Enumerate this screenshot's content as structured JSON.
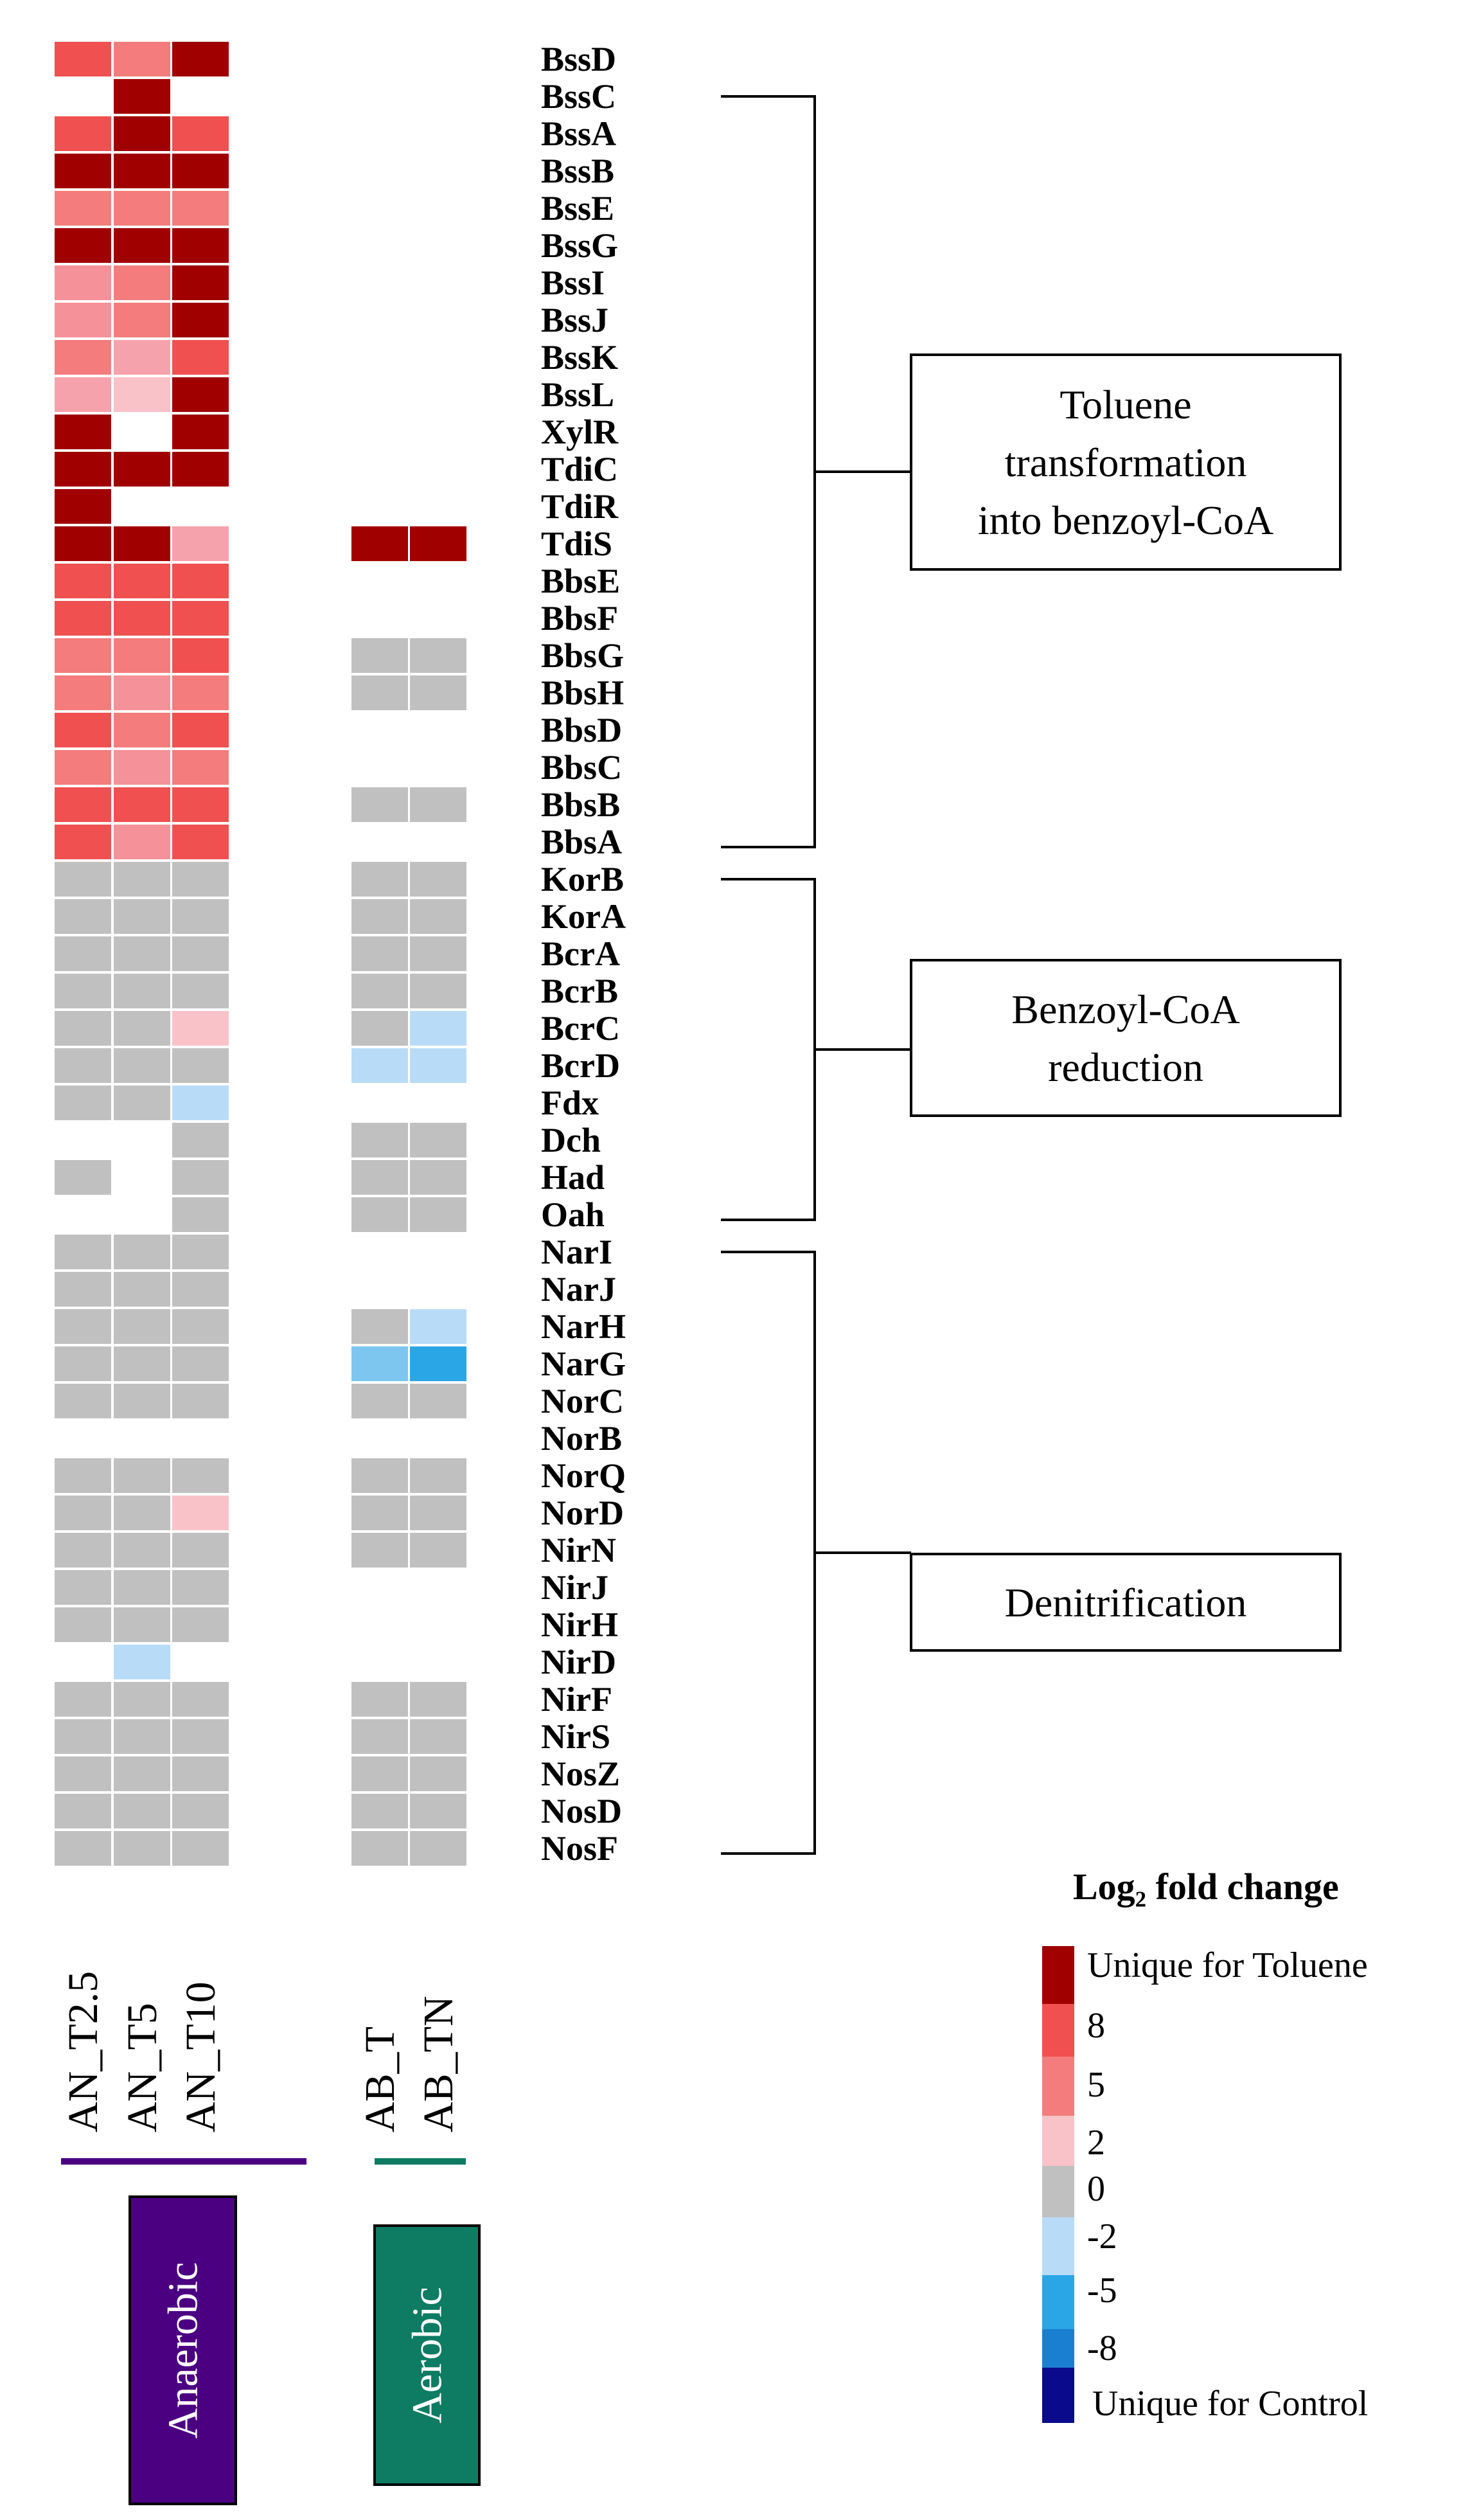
{
  "chart_data": {
    "type": "heatmap",
    "samples": [
      "AN_T2.5",
      "AN_T5",
      "AN_T10",
      "AB_T",
      "AB_TN"
    ],
    "groups": [
      {
        "label": "Anaerobic",
        "samples": [
          "AN_T2.5",
          "AN_T5",
          "AN_T10"
        ],
        "color": "#4B0082"
      },
      {
        "label": "Aerobic",
        "samples": [
          "AB_T",
          "AB_TN"
        ],
        "color": "#0E7B63"
      }
    ],
    "rows": [
      {
        "gene": "BssD",
        "values": [
          6,
          5,
          "T",
          null,
          null
        ]
      },
      {
        "gene": "BssC",
        "values": [
          null,
          "T",
          null,
          null,
          null
        ]
      },
      {
        "gene": "BssA",
        "values": [
          6,
          "T",
          6,
          null,
          null
        ]
      },
      {
        "gene": "BssB",
        "values": [
          "T",
          "T",
          "T",
          null,
          null
        ]
      },
      {
        "gene": "BssE",
        "values": [
          5,
          5,
          5,
          null,
          null
        ]
      },
      {
        "gene": "BssG",
        "values": [
          "T",
          "T",
          "T",
          null,
          null
        ]
      },
      {
        "gene": "BssI",
        "values": [
          4,
          5,
          "T",
          null,
          null
        ]
      },
      {
        "gene": "BssJ",
        "values": [
          4,
          5,
          "T",
          null,
          null
        ]
      },
      {
        "gene": "BssK",
        "values": [
          5,
          3,
          6,
          null,
          null
        ]
      },
      {
        "gene": "BssL",
        "values": [
          3,
          2,
          "T",
          null,
          null
        ]
      },
      {
        "gene": "XylR",
        "values": [
          "T",
          null,
          "T",
          null,
          null
        ]
      },
      {
        "gene": "TdiC",
        "values": [
          "T",
          "T",
          "T",
          null,
          null
        ]
      },
      {
        "gene": "TdiR",
        "values": [
          "T",
          null,
          null,
          null,
          null
        ]
      },
      {
        "gene": "TdiS",
        "values": [
          "T",
          "T",
          3,
          "T",
          "T"
        ]
      },
      {
        "gene": "BbsE",
        "values": [
          6,
          6,
          6,
          null,
          null
        ]
      },
      {
        "gene": "BbsF",
        "values": [
          6,
          6,
          6,
          null,
          null
        ]
      },
      {
        "gene": "BbsG",
        "values": [
          5,
          5,
          6,
          0,
          0
        ]
      },
      {
        "gene": "BbsH",
        "values": [
          5,
          4,
          5,
          0,
          0
        ]
      },
      {
        "gene": "BbsD",
        "values": [
          6,
          5,
          6,
          null,
          null
        ]
      },
      {
        "gene": "BbsC",
        "values": [
          5,
          4,
          5,
          null,
          null
        ]
      },
      {
        "gene": "BbsB",
        "values": [
          6,
          6,
          6,
          0,
          0
        ]
      },
      {
        "gene": "BbsA",
        "values": [
          6,
          4,
          6,
          null,
          null
        ]
      },
      {
        "gene": "KorB",
        "values": [
          0,
          0,
          0,
          0,
          0
        ]
      },
      {
        "gene": "KorA",
        "values": [
          0,
          0,
          0,
          0,
          0
        ]
      },
      {
        "gene": "BcrA",
        "values": [
          0,
          0,
          0,
          0,
          0
        ]
      },
      {
        "gene": "BcrB",
        "values": [
          0,
          0,
          0,
          0,
          0
        ]
      },
      {
        "gene": "BcrC",
        "values": [
          0,
          0,
          2,
          0,
          -2
        ]
      },
      {
        "gene": "BcrD",
        "values": [
          0,
          0,
          0,
          -2,
          -2
        ]
      },
      {
        "gene": "Fdx",
        "values": [
          0,
          0,
          -2,
          null,
          null
        ]
      },
      {
        "gene": "Dch",
        "values": [
          null,
          null,
          0,
          0,
          0
        ]
      },
      {
        "gene": "Had",
        "values": [
          0,
          null,
          0,
          0,
          0
        ]
      },
      {
        "gene": "Oah",
        "values": [
          null,
          null,
          0,
          0,
          0
        ]
      },
      {
        "gene": "NarI",
        "values": [
          0,
          0,
          0,
          null,
          null
        ]
      },
      {
        "gene": "NarJ",
        "values": [
          0,
          0,
          0,
          null,
          null
        ]
      },
      {
        "gene": "NarH",
        "values": [
          0,
          0,
          0,
          0,
          -2
        ]
      },
      {
        "gene": "NarG",
        "values": [
          0,
          0,
          0,
          -3,
          -4
        ]
      },
      {
        "gene": "NorC",
        "values": [
          0,
          0,
          0,
          0,
          0
        ]
      },
      {
        "gene": "NorB",
        "values": [
          null,
          null,
          null,
          null,
          null
        ]
      },
      {
        "gene": "NorQ",
        "values": [
          0,
          0,
          0,
          0,
          0
        ]
      },
      {
        "gene": "NorD",
        "values": [
          0,
          0,
          2,
          0,
          0
        ]
      },
      {
        "gene": "NirN",
        "values": [
          0,
          0,
          0,
          0,
          0
        ]
      },
      {
        "gene": "NirJ",
        "values": [
          0,
          0,
          0,
          null,
          null
        ]
      },
      {
        "gene": "NirH",
        "values": [
          0,
          0,
          0,
          null,
          null
        ]
      },
      {
        "gene": "NirD",
        "values": [
          null,
          -2,
          null,
          null,
          null
        ]
      },
      {
        "gene": "NirF",
        "values": [
          0,
          0,
          0,
          0,
          0
        ]
      },
      {
        "gene": "NirS",
        "values": [
          0,
          0,
          0,
          0,
          0
        ]
      },
      {
        "gene": "NosZ",
        "values": [
          0,
          0,
          0,
          0,
          0
        ]
      },
      {
        "gene": "NosD",
        "values": [
          0,
          0,
          0,
          0,
          0
        ]
      },
      {
        "gene": "NosF",
        "values": [
          0,
          0,
          0,
          0,
          0
        ]
      }
    ],
    "pathways": [
      {
        "label_lines": [
          "Toluene",
          "transformation",
          "into benzoyl-CoA"
        ],
        "from": "BssC",
        "to": "BbsA"
      },
      {
        "label_lines": [
          "Benzoyl-CoA",
          "reduction"
        ],
        "from": "KorB",
        "to": "Oah"
      },
      {
        "label_lines": [
          "Denitrification"
        ],
        "from": "NarI",
        "to": "NosF"
      }
    ],
    "legend": {
      "title": "Log₂ fold change",
      "unique_toluene": "Unique for Toluene",
      "unique_control": "Unique for Control",
      "ticks": [
        "8",
        "5",
        "2",
        "0",
        "-2",
        "-5",
        "-8"
      ],
      "colors": {
        "unique_toluene": "#A00000",
        "8": "#F05050",
        "5": "#F47C7C",
        "2": "#F9C2C8",
        "0": "#C0C0C0",
        "-2": "#B8DCF8",
        "-5": "#2AA6E6",
        "-8": "#1A7FD0",
        "unique_control": "#0A0A8C"
      }
    }
  }
}
